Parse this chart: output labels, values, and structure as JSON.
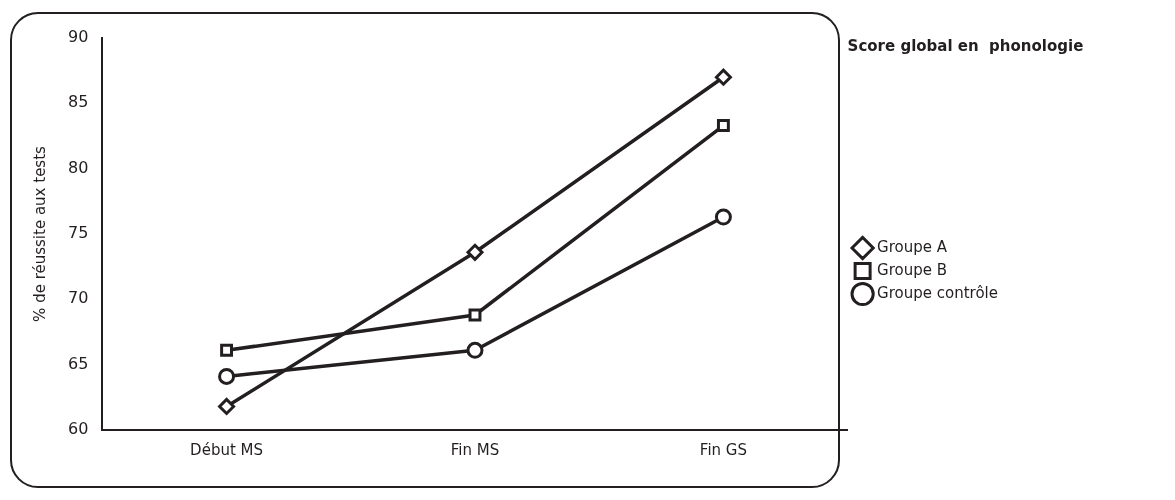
{
  "chart_data": {
    "type": "line",
    "ylabel": "% de réussite aux tests",
    "legend_title": "Score global en  phonologie",
    "categories": [
      "Début MS",
      "Fin MS",
      "Fin GS"
    ],
    "series": [
      {
        "name": "Groupe A",
        "color": "#231f20",
        "marker": "diamond",
        "values": [
          61.8,
          73.6,
          87.0
        ]
      },
      {
        "name": "Groupe B",
        "color": "#231f20",
        "marker": "square",
        "values": [
          66.1,
          68.8,
          83.3
        ]
      },
      {
        "name": "Groupe contrôle",
        "color": "#231f20",
        "marker": "circle",
        "values": [
          64.1,
          66.1,
          76.3
        ]
      }
    ],
    "ylim": [
      60,
      90
    ],
    "yticks": [
      60,
      65,
      70,
      75,
      80,
      85,
      90
    ],
    "grid": false,
    "legend": "right",
    "line_style": "solid"
  }
}
